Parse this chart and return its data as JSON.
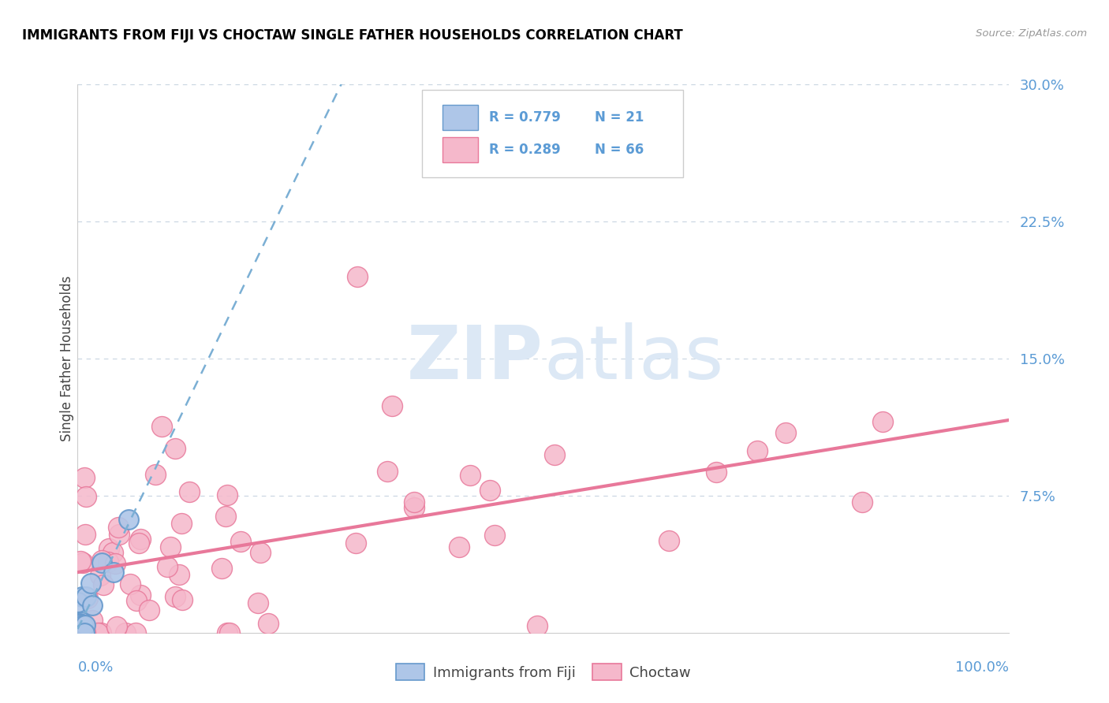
{
  "title": "IMMIGRANTS FROM FIJI VS CHOCTAW SINGLE FATHER HOUSEHOLDS CORRELATION CHART",
  "source": "Source: ZipAtlas.com",
  "ylabel": "Single Father Households",
  "ytick_labels": [
    "7.5%",
    "15.0%",
    "22.5%",
    "30.0%"
  ],
  "ytick_values": [
    0.075,
    0.15,
    0.225,
    0.3
  ],
  "xlim": [
    0,
    1.0
  ],
  "ylim": [
    0,
    0.3
  ],
  "legend_fiji_R": "R = 0.779",
  "legend_fiji_N": "N = 21",
  "legend_choctaw_R": "R = 0.289",
  "legend_choctaw_N": "N = 66",
  "fiji_color": "#aec6e8",
  "fiji_edge": "#6699cc",
  "choctaw_color": "#f5b8cb",
  "choctaw_edge": "#e8789a",
  "fiji_line_color": "#7bafd4",
  "choctaw_line_color": "#e8789a",
  "background": "#ffffff",
  "grid_color": "#c8d4e0",
  "title_color": "#000000",
  "axis_label_color": "#5b9bd5",
  "watermark_color": "#dce8f5"
}
